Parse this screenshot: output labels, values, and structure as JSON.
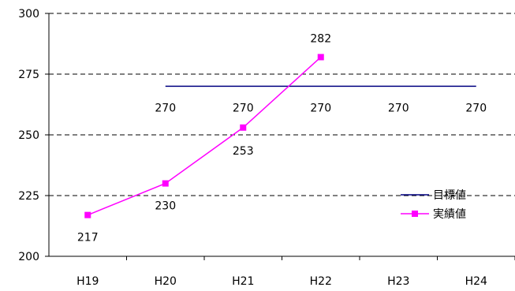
{
  "chart_data": {
    "type": "line",
    "categories": [
      "H19",
      "H20",
      "H21",
      "H22",
      "H23",
      "H24"
    ],
    "ylim": [
      200,
      300
    ],
    "yticks": [
      200,
      225,
      250,
      275,
      300
    ],
    "grid": "horizontal dashed",
    "legend_position": "right",
    "series": [
      {
        "name": "目標値",
        "color": "#000080",
        "marker": "none",
        "values": [
          null,
          270,
          270,
          270,
          270,
          270
        ],
        "labels": [
          "",
          "270",
          "270",
          "270",
          "270",
          "270"
        ]
      },
      {
        "name": "実績値",
        "color": "#ff00ff",
        "marker": "square",
        "values": [
          217,
          230,
          253,
          282,
          null,
          null
        ],
        "labels": [
          "217",
          "230",
          "253",
          "282",
          "",
          ""
        ]
      }
    ]
  }
}
